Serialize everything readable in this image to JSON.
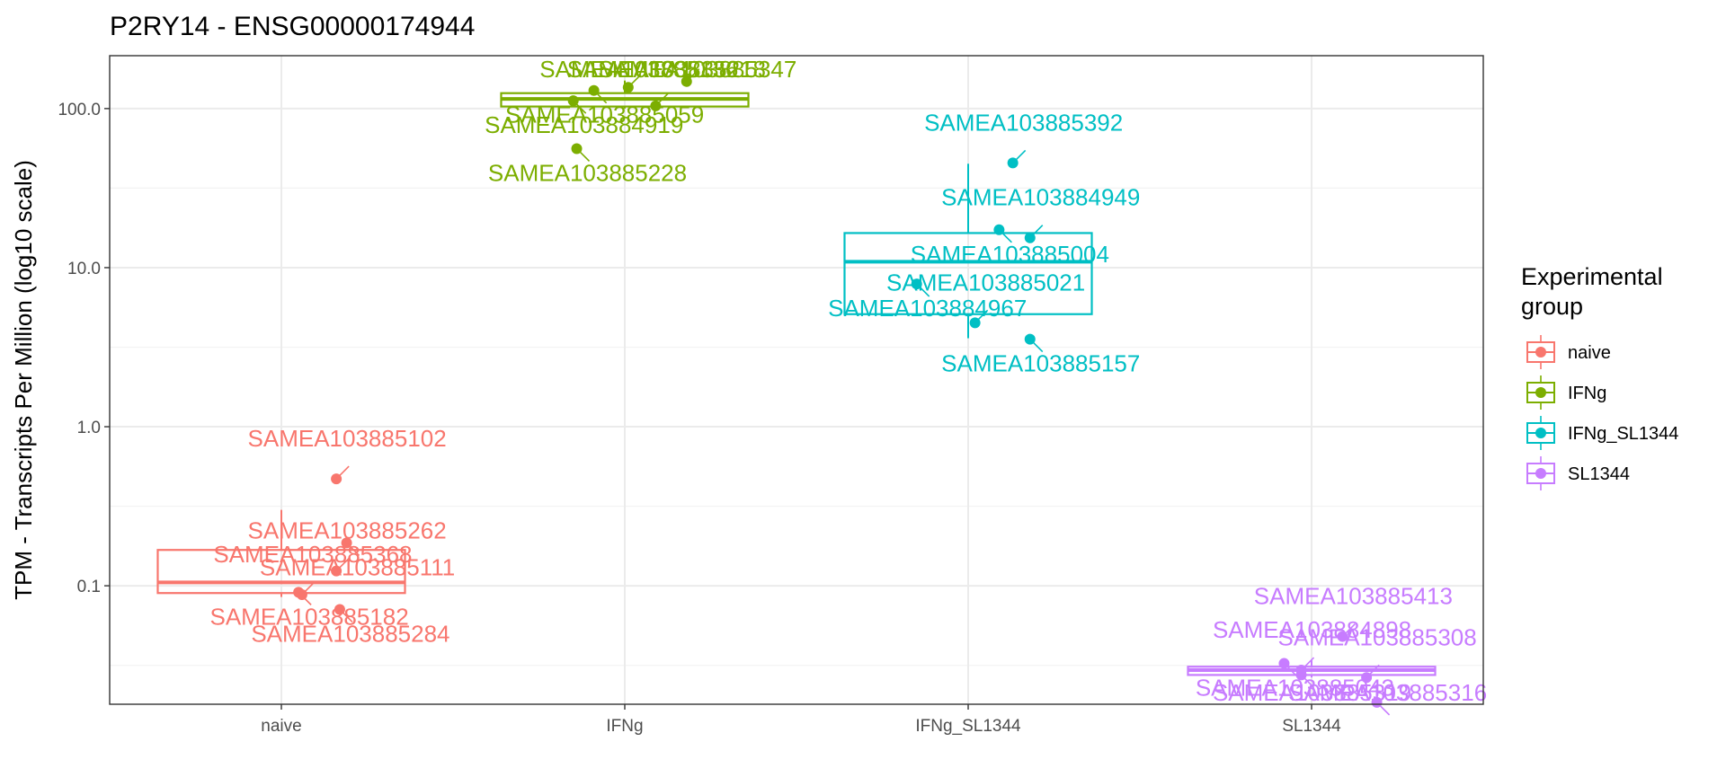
{
  "chart_data": {
    "type": "box",
    "title": "P2RY14 - ENSG00000174944",
    "xlabel": "",
    "ylabel": "TPM - Transcripts Per Million (log10 scale)",
    "y_scale": "log10",
    "ylim": [
      0.018,
      215
    ],
    "y_ticks": [
      {
        "value": 0.1,
        "label": "0.1"
      },
      {
        "value": 1,
        "label": "1.0"
      },
      {
        "value": 10,
        "label": "10.0"
      },
      {
        "value": 100,
        "label": "100.0"
      }
    ],
    "categories": [
      "naive",
      "IFNg",
      "IFNg_SL1344",
      "SL1344"
    ],
    "grid": true,
    "legend": {
      "title_line1": "Experimental",
      "title_line2": "group",
      "position": "right"
    },
    "series": [
      {
        "name": "naive",
        "color": "#F8766D",
        "box": {
          "q1": 0.09,
          "median": 0.105,
          "q3": 0.168,
          "whisker_low": 0.085,
          "whisker_high": 0.3
        },
        "points": [
          {
            "sample": "SAMEA103885102",
            "y": 0.47,
            "dx": 0.16
          },
          {
            "sample": "SAMEA103885111",
            "y": 0.186,
            "dx": 0.19
          },
          {
            "sample": "SAMEA103885262",
            "y": 0.124,
            "dx": 0.16
          },
          {
            "sample": "SAMEA103885182",
            "y": 0.091,
            "dx": 0.05
          },
          {
            "sample": "SAMEA103885368",
            "y": 0.088,
            "dx": 0.06
          },
          {
            "sample": "SAMEA103885284",
            "y": 0.071,
            "dx": 0.17
          }
        ]
      },
      {
        "name": "IFNg",
        "color": "#7CAE00",
        "box": {
          "q1": 103,
          "median": 115,
          "q3": 125,
          "whisker_low": 100,
          "whisker_high": 150
        },
        "points": [
          {
            "sample": "SAMEA103885136",
            "y": 136,
            "dx": 0.01
          },
          {
            "sample": "SAMEA103885059",
            "y": 130,
            "dx": -0.09
          },
          {
            "sample": "SAMEA103885347",
            "y": 148,
            "dx": 0.18
          },
          {
            "sample": "SAMEA103884919",
            "y": 112,
            "dx": -0.15
          },
          {
            "sample": "SAMEA103885218",
            "y": 104,
            "dx": 0.09
          },
          {
            "sample": "SAMEA103885228",
            "y": 56,
            "dx": -0.14
          }
        ]
      },
      {
        "name": "IFNg_SL1344",
        "color": "#00BFC4",
        "box": {
          "q1": 5.1,
          "median": 10.9,
          "q3": 16.5,
          "whisker_low": 3.6,
          "whisker_high": 45
        },
        "points": [
          {
            "sample": "SAMEA103885392",
            "y": 45.5,
            "dx": 0.13
          },
          {
            "sample": "SAMEA103885004",
            "y": 17.3,
            "dx": 0.09
          },
          {
            "sample": "SAMEA103884949",
            "y": 15.4,
            "dx": 0.18
          },
          {
            "sample": "SAMEA103884967",
            "y": 7.9,
            "dx": -0.15
          },
          {
            "sample": "SAMEA103885021",
            "y": 4.5,
            "dx": 0.02
          },
          {
            "sample": "SAMEA103885157",
            "y": 3.55,
            "dx": 0.18
          }
        ]
      },
      {
        "name": "SL1344",
        "color": "#C77CFF",
        "box": {
          "q1": 0.0275,
          "median": 0.0295,
          "q3": 0.031,
          "whisker_low": 0.0265,
          "whisker_high": 0.034
        },
        "points": [
          {
            "sample": "SAMEA103885413",
            "y": 0.048,
            "dx": 0.09
          },
          {
            "sample": "SAMEA103885043",
            "y": 0.0325,
            "dx": -0.08
          },
          {
            "sample": "SAMEA103884898",
            "y": 0.0295,
            "dx": -0.03
          },
          {
            "sample": "SAMEA103885319",
            "y": 0.0275,
            "dx": -0.03
          },
          {
            "sample": "SAMEA103885308",
            "y": 0.0265,
            "dx": 0.16
          },
          {
            "sample": "SAMEA103885316",
            "y": 0.0185,
            "dx": 0.19
          }
        ]
      }
    ]
  }
}
